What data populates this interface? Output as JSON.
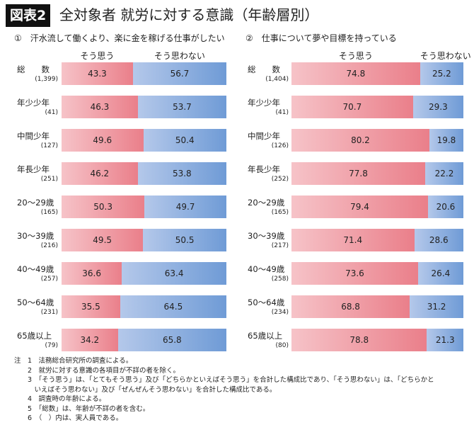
{
  "header": {
    "badge": "図表2",
    "title": "全対象者 就労に対する意識（年齢層別）"
  },
  "colors": {
    "yes": "#ea7f8a",
    "no": "#6f9bd6"
  },
  "chart_data": [
    {
      "type": "bar",
      "stacked": true,
      "orientation": "horizontal",
      "title": "①　汗水流して働くより、楽に金を稼げる仕事がしたい",
      "legend": [
        "そう思う",
        "そう思わない"
      ],
      "categories": [
        "総　　数",
        "年少少年",
        "中間少年",
        "年長少年",
        "20～29歳",
        "30～39歳",
        "40～49歳",
        "50～64歳",
        "65歳以上"
      ],
      "counts": [
        "(1,399)",
        "(41)",
        "(127)",
        "(251)",
        "(165)",
        "(216)",
        "(257)",
        "(231)",
        "(79)"
      ],
      "series": [
        {
          "name": "そう思う",
          "values": [
            43.3,
            46.3,
            49.6,
            46.2,
            50.3,
            49.5,
            36.6,
            35.5,
            34.2
          ]
        },
        {
          "name": "そう思わない",
          "values": [
            56.7,
            53.7,
            50.4,
            53.8,
            49.7,
            50.5,
            63.4,
            64.5,
            65.8
          ]
        }
      ]
    },
    {
      "type": "bar",
      "stacked": true,
      "orientation": "horizontal",
      "title": "②　仕事について夢や目標を持っている",
      "legend": [
        "そう思う",
        "そう思わない"
      ],
      "categories": [
        "総　　数",
        "年少少年",
        "中間少年",
        "年長少年",
        "20～29歳",
        "30～39歳",
        "40～49歳",
        "50～64歳",
        "65歳以上"
      ],
      "counts": [
        "(1,404)",
        "(41)",
        "(126)",
        "(252)",
        "(165)",
        "(217)",
        "(258)",
        "(234)",
        "(80)"
      ],
      "series": [
        {
          "name": "そう思う",
          "values": [
            74.8,
            70.7,
            80.2,
            77.8,
            79.4,
            71.4,
            73.6,
            68.8,
            78.8
          ]
        },
        {
          "name": "そう思わない",
          "values": [
            25.2,
            29.3,
            19.8,
            22.2,
            20.6,
            28.6,
            26.4,
            31.2,
            21.3
          ]
        }
      ]
    }
  ],
  "notes": [
    "注　1　法務総合研究所の調査による。",
    "　　2　就労に対する意識の各項目が不詳の者を除く。",
    "　　3　「そう思う」は、「とてもそう思う」及び「どちらかといえばそう思う」を合計した構成比であり、「そう思わない」は、「どちらかと",
    "　　　いえばそう思わない」及び「ぜんぜんそう思わない」を合計した構成比である。",
    "　　4　調査時の年齢による。",
    "　　5　「総数」は、年齢が不詳の者を含む。",
    "　　6　（　）内は、実人員である。"
  ]
}
